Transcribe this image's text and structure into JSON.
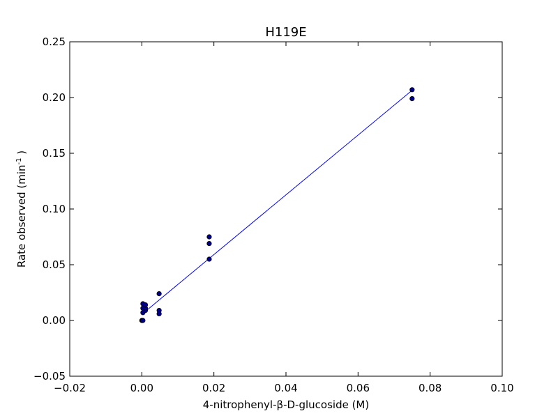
{
  "chart_data": {
    "type": "scatter",
    "title": "H119E",
    "xlabel": "4-nitrophenyl-β-D-glucoside (M)",
    "ylabel_main": "Rate observed (min",
    "ylabel_sup": "-1",
    "ylabel_end": " )",
    "xlim": [
      -0.02,
      0.1
    ],
    "ylim": [
      -0.05,
      0.25
    ],
    "x_ticks": [
      -0.02,
      0.0,
      0.02,
      0.04,
      0.06,
      0.08,
      0.1
    ],
    "x_tick_labels": [
      "−0.02",
      "0.00",
      "0.02",
      "0.04",
      "0.06",
      "0.08",
      "0.10"
    ],
    "y_ticks": [
      -0.05,
      0.0,
      0.05,
      0.1,
      0.15,
      0.2,
      0.25
    ],
    "y_tick_labels": [
      "−0.05",
      "0.00",
      "0.05",
      "0.10",
      "0.15",
      "0.20",
      "0.25"
    ],
    "grid": false,
    "series": [
      {
        "kind": "points",
        "color": "#00008b",
        "points": [
          [
            0.0,
            0.0
          ],
          [
            0.0001,
            0.0
          ],
          [
            0.0002,
            0.0
          ],
          [
            0.0003,
            0.0
          ],
          [
            0.0003,
            0.007
          ],
          [
            0.0003,
            0.011
          ],
          [
            0.0003,
            0.015
          ],
          [
            0.001,
            0.009
          ],
          [
            0.001,
            0.011
          ],
          [
            0.001,
            0.014
          ],
          [
            0.0048,
            0.024
          ],
          [
            0.0048,
            0.009
          ],
          [
            0.0048,
            0.006
          ],
          [
            0.0187,
            0.075
          ],
          [
            0.0187,
            0.069
          ],
          [
            0.0187,
            0.055
          ],
          [
            0.075,
            0.207
          ],
          [
            0.075,
            0.199
          ]
        ]
      },
      {
        "kind": "fit-line",
        "color": "#0000ff",
        "points": [
          [
            0.0,
            0.0055
          ],
          [
            0.075,
            0.2065
          ]
        ]
      }
    ]
  }
}
